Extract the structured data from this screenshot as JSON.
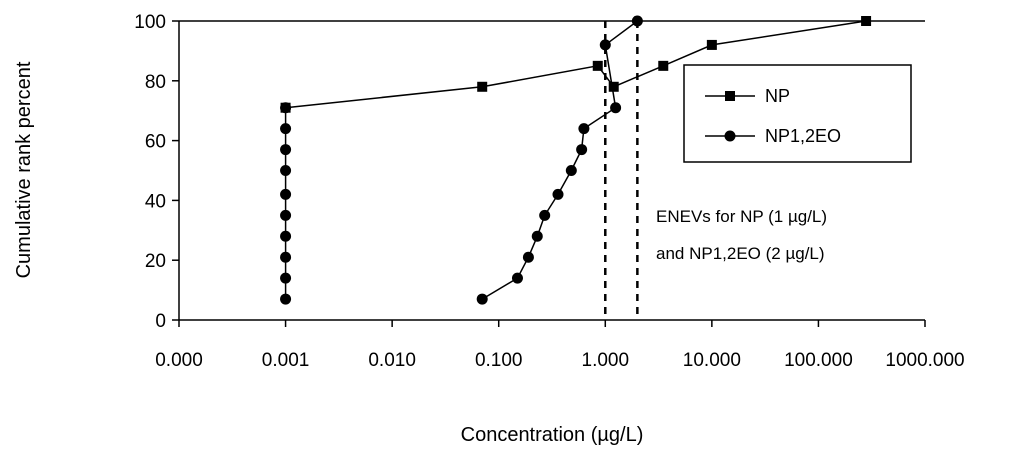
{
  "chart_data": {
    "type": "line",
    "xlabel": "Concentration (µg/L)",
    "ylabel": "Cumulative rank percent",
    "xscale": "log",
    "xlim": [
      0.0001,
      1000
    ],
    "ylim": [
      0,
      100
    ],
    "x_tick_labels": [
      "0.000",
      "0.001",
      "0.010",
      "0.100",
      "1.000",
      "10.000",
      "100.000",
      "1000.000"
    ],
    "y_tick_labels": [
      "0",
      "20",
      "40",
      "60",
      "80",
      "100"
    ],
    "legend_position": "right",
    "grid": false,
    "series": [
      {
        "name": "NP",
        "marker": "square",
        "points": [
          {
            "x": 0.001,
            "y": 71
          },
          {
            "x": 0.07,
            "y": 78
          },
          {
            "x": 0.85,
            "y": 85
          },
          {
            "x": 1.2,
            "y": 78
          },
          {
            "x": 3.5,
            "y": 85
          },
          {
            "x": 10,
            "y": 92
          },
          {
            "x": 280,
            "y": 100
          }
        ]
      },
      {
        "name": "NP1,2EO",
        "marker": "circle",
        "points": [
          {
            "x": 0.07,
            "y": 7
          },
          {
            "x": 0.15,
            "y": 14
          },
          {
            "x": 0.19,
            "y": 21
          },
          {
            "x": 0.23,
            "y": 28
          },
          {
            "x": 0.27,
            "y": 35
          },
          {
            "x": 0.36,
            "y": 42
          },
          {
            "x": 0.48,
            "y": 50
          },
          {
            "x": 0.6,
            "y": 57
          },
          {
            "x": 0.63,
            "y": 64
          },
          {
            "x": 1.25,
            "y": 71
          },
          {
            "x": 1.0,
            "y": 92
          },
          {
            "x": 2.0,
            "y": 100
          }
        ]
      },
      {
        "name": "",
        "marker": "circle",
        "points": [
          {
            "x": 0.001,
            "y": 7
          },
          {
            "x": 0.001,
            "y": 14
          },
          {
            "x": 0.001,
            "y": 21
          },
          {
            "x": 0.001,
            "y": 28
          },
          {
            "x": 0.001,
            "y": 35
          },
          {
            "x": 0.001,
            "y": 42
          },
          {
            "x": 0.001,
            "y": 50
          },
          {
            "x": 0.001,
            "y": 57
          },
          {
            "x": 0.001,
            "y": 64
          },
          {
            "x": 0.001,
            "y": 71
          }
        ]
      }
    ],
    "reference_lines": [
      {
        "x": 1,
        "style": "dashed"
      },
      {
        "x": 2,
        "style": "dashed"
      }
    ],
    "annotations": [
      "ENEVs for NP (1 µg/L)",
      "and NP1,2EO (2 µg/L)"
    ]
  },
  "colors": {
    "ink": "#000000",
    "background": "#ffffff"
  }
}
